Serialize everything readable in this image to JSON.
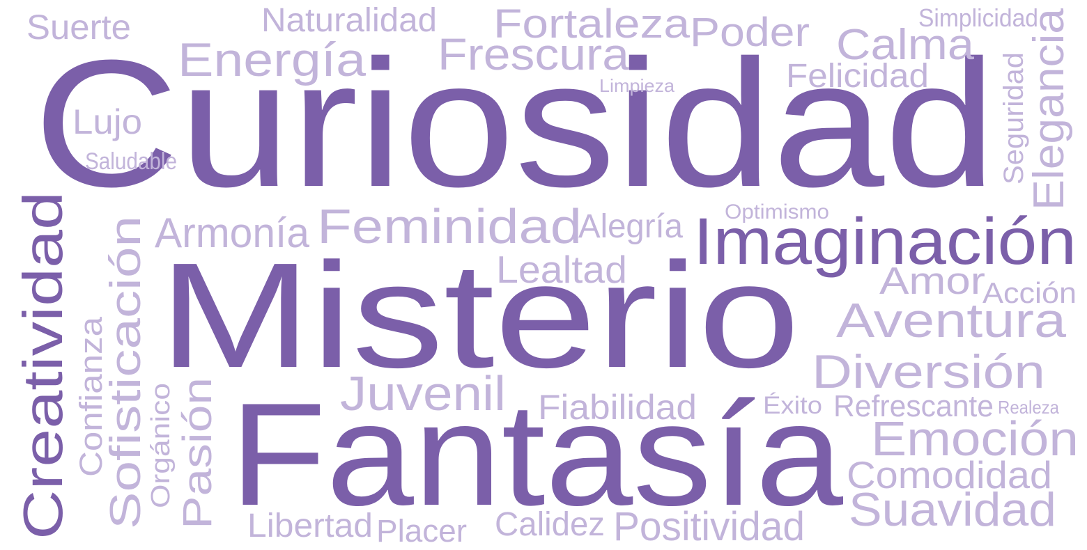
{
  "colors": {
    "dark": "#7b5fa9",
    "light": "#c2b4da",
    "background": "#ffffff"
  },
  "words": [
    {
      "text": "Curiosidad",
      "tone": "dark"
    },
    {
      "text": "Misterio",
      "tone": "dark"
    },
    {
      "text": "Fantasía",
      "tone": "dark"
    },
    {
      "text": "Imaginación",
      "tone": "dark"
    },
    {
      "text": "Creatividad",
      "tone": "dark"
    },
    {
      "text": "Suerte",
      "tone": "light"
    },
    {
      "text": "Naturalidad",
      "tone": "light"
    },
    {
      "text": "Fortaleza",
      "tone": "light"
    },
    {
      "text": "Poder",
      "tone": "light"
    },
    {
      "text": "Simplicidad",
      "tone": "light"
    },
    {
      "text": "Energía",
      "tone": "light"
    },
    {
      "text": "Frescura",
      "tone": "light"
    },
    {
      "text": "Calma",
      "tone": "light"
    },
    {
      "text": "Elegancia",
      "tone": "light"
    },
    {
      "text": "Felicidad",
      "tone": "light"
    },
    {
      "text": "Limpieza",
      "tone": "light"
    },
    {
      "text": "Seguridad",
      "tone": "light"
    },
    {
      "text": "Lujo",
      "tone": "light"
    },
    {
      "text": "Saludable",
      "tone": "light"
    },
    {
      "text": "Optimismo",
      "tone": "light"
    },
    {
      "text": "Armonía",
      "tone": "light"
    },
    {
      "text": "Feminidad",
      "tone": "light"
    },
    {
      "text": "Alegría",
      "tone": "light"
    },
    {
      "text": "Sofisticación",
      "tone": "light"
    },
    {
      "text": "Lealtad",
      "tone": "light"
    },
    {
      "text": "Amor",
      "tone": "light"
    },
    {
      "text": "Acción",
      "tone": "light"
    },
    {
      "text": "Aventura",
      "tone": "light"
    },
    {
      "text": "Confianza",
      "tone": "light"
    },
    {
      "text": "Diversión",
      "tone": "light"
    },
    {
      "text": "Juvenil",
      "tone": "light"
    },
    {
      "text": "Fiabilidad",
      "tone": "light"
    },
    {
      "text": "Éxito",
      "tone": "light"
    },
    {
      "text": "Refrescante",
      "tone": "light"
    },
    {
      "text": "Realeza",
      "tone": "light"
    },
    {
      "text": "Orgánico",
      "tone": "light"
    },
    {
      "text": "Pasión",
      "tone": "light"
    },
    {
      "text": "Emoción",
      "tone": "light"
    },
    {
      "text": "Comodidad",
      "tone": "light"
    },
    {
      "text": "Suavidad",
      "tone": "light"
    },
    {
      "text": "Libertad",
      "tone": "light"
    },
    {
      "text": "Placer",
      "tone": "light"
    },
    {
      "text": "Calidez",
      "tone": "light"
    },
    {
      "text": "Positividad",
      "tone": "light"
    }
  ]
}
